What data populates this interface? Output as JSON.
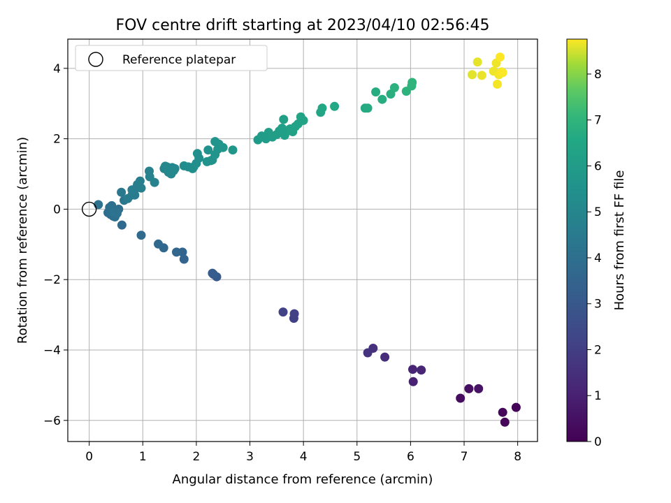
{
  "chart_data": {
    "type": "scatter",
    "title": "FOV centre drift starting at 2023/04/10 02:56:45",
    "xlabel": "Angular distance from reference (arcmin)",
    "ylabel": "Rotation from reference (arcmin)",
    "xlim": [
      -0.4,
      8.37
    ],
    "ylim": [
      -6.6,
      4.83
    ],
    "x_ticks": [
      0,
      1,
      2,
      3,
      4,
      5,
      6,
      7,
      8
    ],
    "y_ticks": [
      -6,
      -4,
      -2,
      0,
      2,
      4
    ],
    "grid": true,
    "legend": {
      "placement": "top-left",
      "entries": [
        {
          "label": "Reference platepar",
          "marker": "open-circle"
        }
      ]
    },
    "reference_point": {
      "x": 0,
      "y": 0
    },
    "colorbar": {
      "label": "Hours from first FF file",
      "colormap": "viridis",
      "range": [
        0,
        8.76
      ],
      "ticks": [
        0,
        1,
        2,
        3,
        4,
        5,
        6,
        7,
        8
      ]
    },
    "points": [
      [
        7.97,
        -5.63,
        0.1
      ],
      [
        7.76,
        -6.05,
        0.15
      ],
      [
        7.72,
        -5.77,
        0.2
      ],
      [
        6.93,
        -5.37,
        0.35
      ],
      [
        7.09,
        -5.1,
        0.45
      ],
      [
        7.27,
        -5.1,
        0.55
      ],
      [
        6.05,
        -4.9,
        1.0
      ],
      [
        6.04,
        -4.55,
        1.1
      ],
      [
        6.2,
        -4.57,
        1.15
      ],
      [
        5.52,
        -4.2,
        1.45
      ],
      [
        5.3,
        -3.95,
        1.55
      ],
      [
        5.2,
        -4.08,
        1.6
      ],
      [
        3.82,
        -3.1,
        2.05
      ],
      [
        3.83,
        -2.97,
        2.1
      ],
      [
        3.62,
        -2.92,
        2.15
      ],
      [
        2.38,
        -1.92,
        3.1
      ],
      [
        2.3,
        -1.82,
        3.15
      ],
      [
        2.32,
        -1.85,
        3.2
      ],
      [
        1.77,
        -1.42,
        3.5
      ],
      [
        1.74,
        -1.22,
        3.55
      ],
      [
        1.63,
        -1.22,
        3.6
      ],
      [
        1.39,
        -1.1,
        3.65
      ],
      [
        1.29,
        -0.99,
        3.7
      ],
      [
        0.97,
        -0.74,
        3.75
      ],
      [
        0.61,
        -0.45,
        3.8
      ],
      [
        0.4,
        -0.15,
        3.9
      ],
      [
        0.45,
        -0.2,
        3.9
      ],
      [
        0.5,
        -0.05,
        3.95
      ],
      [
        0.35,
        -0.1,
        3.95
      ],
      [
        0.55,
        0.0,
        4.0
      ],
      [
        0.42,
        0.1,
        4.0
      ],
      [
        0.48,
        -0.22,
        4.05
      ],
      [
        0.38,
        0.05,
        4.05
      ],
      [
        0.52,
        -0.12,
        4.1
      ],
      [
        0.44,
        -0.08,
        4.1
      ],
      [
        0.17,
        0.13,
        4.1
      ],
      [
        0.65,
        0.25,
        4.3
      ],
      [
        0.6,
        0.48,
        4.4
      ],
      [
        0.72,
        0.3,
        4.5
      ],
      [
        0.8,
        0.4,
        4.5
      ],
      [
        0.85,
        0.4,
        4.55
      ],
      [
        0.8,
        0.55,
        4.6
      ],
      [
        0.88,
        0.6,
        4.6
      ],
      [
        0.9,
        0.7,
        4.65
      ],
      [
        0.97,
        0.6,
        4.7
      ],
      [
        0.95,
        0.8,
        4.7
      ],
      [
        1.12,
        1.08,
        4.8
      ],
      [
        1.13,
        0.92,
        4.8
      ],
      [
        1.22,
        0.76,
        4.85
      ],
      [
        1.4,
        1.15,
        4.9
      ],
      [
        1.45,
        1.2,
        4.95
      ],
      [
        1.5,
        1.1,
        5.0
      ],
      [
        1.55,
        1.18,
        5.0
      ],
      [
        1.48,
        1.05,
        5.05
      ],
      [
        1.6,
        1.15,
        5.05
      ],
      [
        1.42,
        1.22,
        5.1
      ],
      [
        1.53,
        1.0,
        5.1
      ],
      [
        1.58,
        1.1,
        5.1
      ],
      [
        1.77,
        1.23,
        5.3
      ],
      [
        1.85,
        1.2,
        5.3
      ],
      [
        1.95,
        1.2,
        5.35
      ],
      [
        1.93,
        1.15,
        5.35
      ],
      [
        2.0,
        1.3,
        5.4
      ],
      [
        2.05,
        1.45,
        5.4
      ],
      [
        2.02,
        1.58,
        5.45
      ],
      [
        2.2,
        1.35,
        5.5
      ],
      [
        2.22,
        1.68,
        5.5
      ],
      [
        2.27,
        1.38,
        5.55
      ],
      [
        2.3,
        1.4,
        5.55
      ],
      [
        2.35,
        1.55,
        5.6
      ],
      [
        2.35,
        1.92,
        5.6
      ],
      [
        2.4,
        1.7,
        5.65
      ],
      [
        2.42,
        1.85,
        5.65
      ],
      [
        2.5,
        1.75,
        5.7
      ],
      [
        2.68,
        1.68,
        5.75
      ],
      [
        3.15,
        1.97,
        5.95
      ],
      [
        3.22,
        2.08,
        6.0
      ],
      [
        3.3,
        2.0,
        6.0
      ],
      [
        3.35,
        2.18,
        6.05
      ],
      [
        3.42,
        2.05,
        6.05
      ],
      [
        3.5,
        2.12,
        6.1
      ],
      [
        3.55,
        2.22,
        6.1
      ],
      [
        3.6,
        2.3,
        6.15
      ],
      [
        3.65,
        2.1,
        6.15
      ],
      [
        3.68,
        2.2,
        6.2
      ],
      [
        3.63,
        2.55,
        6.2
      ],
      [
        3.75,
        2.28,
        6.25
      ],
      [
        3.8,
        2.2,
        6.25
      ],
      [
        3.85,
        2.35,
        6.3
      ],
      [
        3.9,
        2.42,
        6.3
      ],
      [
        3.95,
        2.62,
        6.35
      ],
      [
        4.0,
        2.52,
        6.35
      ],
      [
        4.32,
        2.75,
        6.45
      ],
      [
        4.35,
        2.87,
        6.5
      ],
      [
        4.58,
        2.92,
        6.55
      ],
      [
        5.15,
        2.87,
        6.6
      ],
      [
        5.2,
        2.87,
        6.65
      ],
      [
        5.35,
        3.33,
        6.7
      ],
      [
        5.47,
        3.12,
        6.75
      ],
      [
        5.63,
        3.27,
        6.8
      ],
      [
        5.7,
        3.45,
        6.85
      ],
      [
        5.92,
        3.35,
        6.9
      ],
      [
        6.02,
        3.5,
        6.95
      ],
      [
        6.03,
        3.6,
        7.0
      ],
      [
        7.15,
        3.82,
        8.6
      ],
      [
        7.25,
        4.18,
        8.62
      ],
      [
        7.33,
        3.8,
        8.64
      ],
      [
        7.55,
        3.92,
        8.66
      ],
      [
        7.6,
        4.15,
        8.68
      ],
      [
        7.62,
        3.55,
        8.7
      ],
      [
        7.65,
        3.82,
        8.7
      ],
      [
        7.7,
        3.9,
        8.72
      ],
      [
        7.72,
        3.88,
        8.74
      ],
      [
        7.67,
        4.32,
        8.76
      ]
    ]
  }
}
